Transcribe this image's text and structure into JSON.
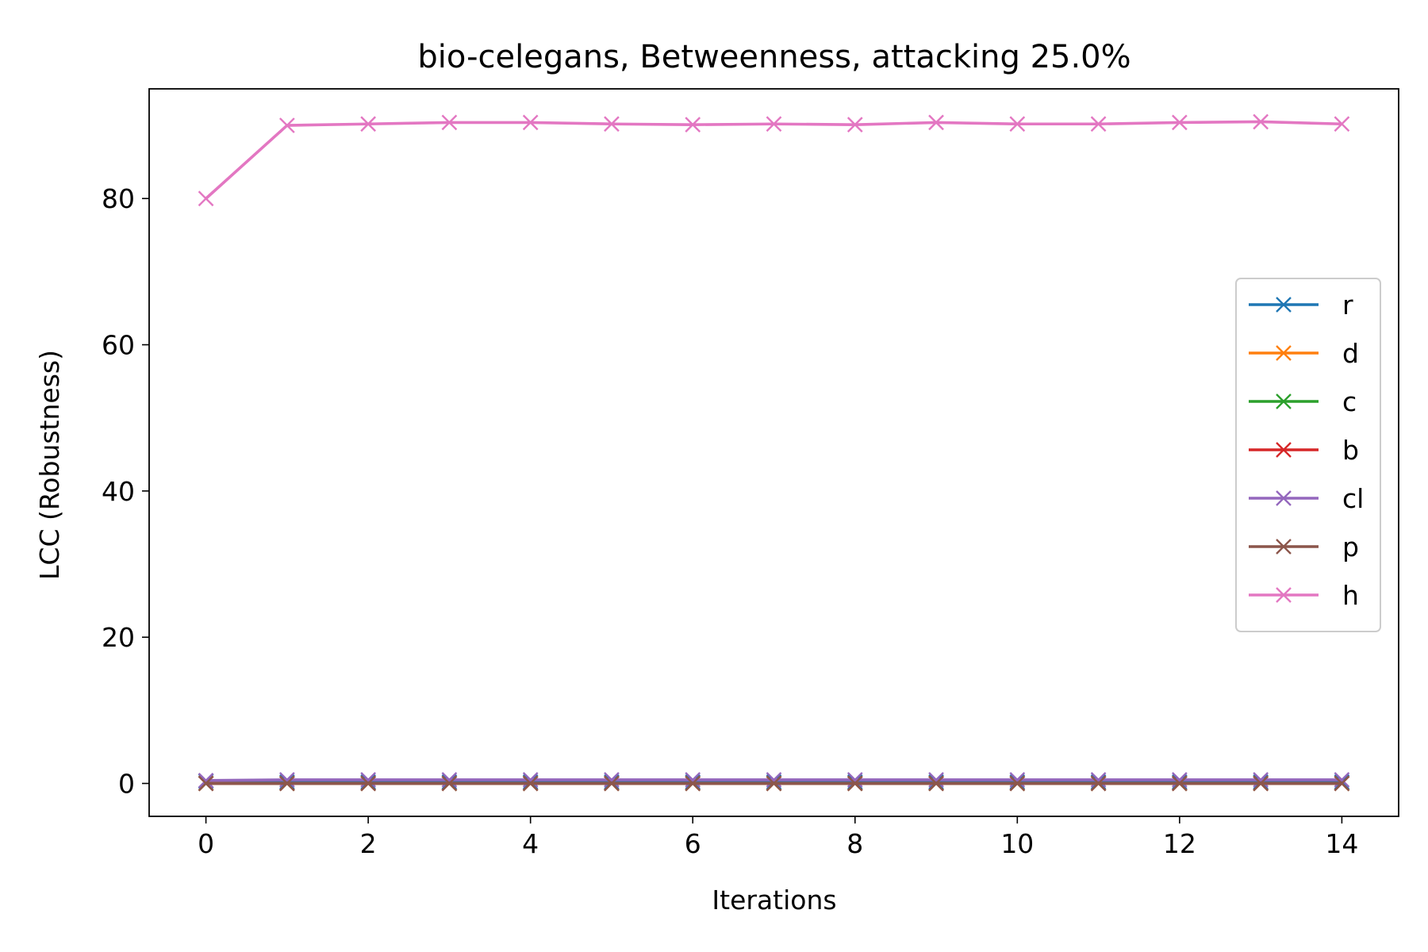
{
  "chart_data": {
    "type": "line",
    "title": "bio-celegans, Betweenness, attacking 25.0%",
    "xlabel": "Iterations",
    "ylabel": "LCC (Robustness)",
    "xlim": [
      -0.7,
      14.7
    ],
    "ylim": [
      -4.5,
      95.0
    ],
    "xticks": [
      0,
      2,
      4,
      6,
      8,
      10,
      12,
      14
    ],
    "yticks": [
      0,
      20,
      40,
      60,
      80
    ],
    "grid": false,
    "legend_position": "center-right",
    "marker": "x",
    "x": [
      0,
      1,
      2,
      3,
      4,
      5,
      6,
      7,
      8,
      9,
      10,
      11,
      12,
      13,
      14
    ],
    "series": [
      {
        "name": "r",
        "color": "#1f77b4",
        "values": [
          0.3,
          0.2,
          0.2,
          0.2,
          0.2,
          0.2,
          0.2,
          0.2,
          0.2,
          0.2,
          0.2,
          0.2,
          0.2,
          0.2,
          0.2
        ]
      },
      {
        "name": "d",
        "color": "#ff7f0e",
        "values": [
          0.0,
          0.0,
          0.0,
          0.0,
          0.0,
          0.0,
          0.0,
          0.0,
          0.0,
          0.0,
          0.0,
          0.0,
          0.0,
          0.0,
          0.0
        ]
      },
      {
        "name": "c",
        "color": "#2ca02c",
        "values": [
          0.0,
          0.0,
          0.0,
          0.0,
          0.0,
          0.0,
          0.0,
          0.0,
          0.0,
          0.0,
          0.0,
          0.0,
          0.0,
          0.0,
          0.0
        ]
      },
      {
        "name": "b",
        "color": "#d62728",
        "values": [
          0.0,
          0.0,
          0.0,
          0.0,
          0.0,
          0.0,
          0.0,
          0.0,
          0.0,
          0.0,
          0.0,
          0.0,
          0.0,
          0.0,
          0.0
        ]
      },
      {
        "name": "cl",
        "color": "#9467bd",
        "values": [
          0.4,
          0.5,
          0.5,
          0.5,
          0.5,
          0.5,
          0.5,
          0.5,
          0.5,
          0.5,
          0.5,
          0.5,
          0.5,
          0.5,
          0.5
        ]
      },
      {
        "name": "p",
        "color": "#8c564b",
        "values": [
          0.0,
          0.0,
          0.0,
          0.0,
          0.0,
          0.0,
          0.0,
          0.0,
          0.0,
          0.0,
          0.0,
          0.0,
          0.0,
          0.0,
          0.0
        ]
      },
      {
        "name": "h",
        "color": "#e377c2",
        "values": [
          80.0,
          90.0,
          90.2,
          90.4,
          90.4,
          90.2,
          90.1,
          90.2,
          90.1,
          90.4,
          90.2,
          90.2,
          90.4,
          90.5,
          90.2
        ]
      }
    ]
  }
}
